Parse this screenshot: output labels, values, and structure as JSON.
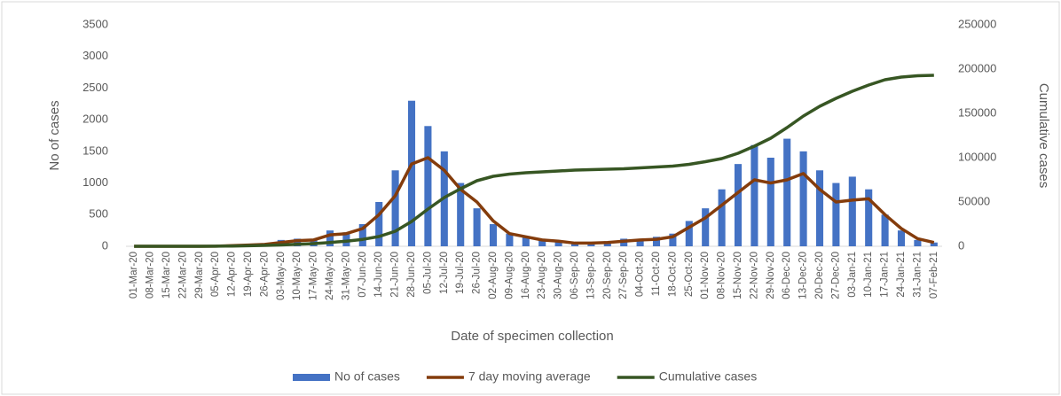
{
  "chart_data": {
    "type": "bar",
    "x_label": "Date of specimen collection",
    "y_label": "No of cases",
    "y2_label": "Cumulative cases",
    "categories": [
      "01-Mar-20",
      "08-Mar-20",
      "15-Mar-20",
      "22-Mar-20",
      "29-Mar-20",
      "05-Apr-20",
      "12-Apr-20",
      "19-Apr-20",
      "26-Apr-20",
      "03-May-20",
      "10-May-20",
      "17-May-20",
      "24-May-20",
      "31-May-20",
      "07-Jun-20",
      "14-Jun-20",
      "21-Jun-20",
      "28-Jun-20",
      "05-Jul-20",
      "12-Jul-20",
      "19-Jul-20",
      "26-Jul-20",
      "02-Aug-20",
      "09-Aug-20",
      "16-Aug-20",
      "23-Aug-20",
      "30-Aug-20",
      "06-Sep-20",
      "13-Sep-20",
      "20-Sep-20",
      "27-Sep-20",
      "04-Oct-20",
      "11-Oct-20",
      "18-Oct-20",
      "25-Oct-20",
      "01-Nov-20",
      "08-Nov-20",
      "15-Nov-20",
      "22-Nov-20",
      "29-Nov-20",
      "06-Dec-20",
      "13-Dec-20",
      "20-Dec-20",
      "27-Dec-20",
      "03-Jan-21",
      "10-Jan-21",
      "17-Jan-21",
      "24-Jan-21",
      "31-Jan-21",
      "07-Feb-21"
    ],
    "series": [
      {
        "name": "No of cases",
        "type": "bar",
        "color": "#4472c4",
        "values": [
          0,
          0,
          0,
          0,
          0,
          5,
          15,
          30,
          40,
          100,
          120,
          110,
          250,
          220,
          350,
          700,
          1200,
          2300,
          1900,
          1500,
          1000,
          600,
          350,
          200,
          150,
          100,
          80,
          40,
          60,
          80,
          120,
          100,
          150,
          200,
          400,
          600,
          900,
          1300,
          1600,
          1400,
          1700,
          1500,
          1200,
          1000,
          1100,
          900,
          500,
          250,
          100,
          60
        ]
      },
      {
        "name": "7 day moving average",
        "type": "line",
        "color": "#843c0c",
        "values": [
          0,
          0,
          0,
          0,
          0,
          2,
          10,
          20,
          30,
          60,
          90,
          100,
          180,
          200,
          280,
          500,
          800,
          1300,
          1400,
          1200,
          900,
          700,
          400,
          200,
          150,
          100,
          80,
          50,
          50,
          60,
          80,
          100,
          110,
          150,
          300,
          450,
          650,
          850,
          1050,
          1000,
          1050,
          1150,
          900,
          700,
          730,
          750,
          500,
          280,
          120,
          60
        ]
      },
      {
        "name": "Cumulative cases",
        "type": "line",
        "axis": "y2",
        "color": "#375623",
        "values": [
          0,
          0,
          0,
          0,
          0,
          100,
          300,
          600,
          1000,
          1500,
          2200,
          3000,
          4200,
          5800,
          7800,
          11000,
          17000,
          28000,
          42000,
          55000,
          65000,
          74000,
          79000,
          81500,
          83000,
          84000,
          85000,
          86000,
          86500,
          87000,
          87500,
          88500,
          89500,
          90500,
          92500,
          95500,
          99000,
          105000,
          113000,
          122000,
          134000,
          147000,
          158000,
          167000,
          175000,
          182000,
          188000,
          191000,
          192500,
          193000
        ]
      }
    ],
    "ylim": [
      0,
      3500
    ],
    "yticks": [
      0,
      500,
      1000,
      1500,
      2000,
      2500,
      3000,
      3500
    ],
    "y2lim": [
      0,
      250000
    ],
    "y2ticks": [
      0,
      50000,
      100000,
      150000,
      200000,
      250000
    ],
    "grid": false,
    "legend": "bottom"
  }
}
